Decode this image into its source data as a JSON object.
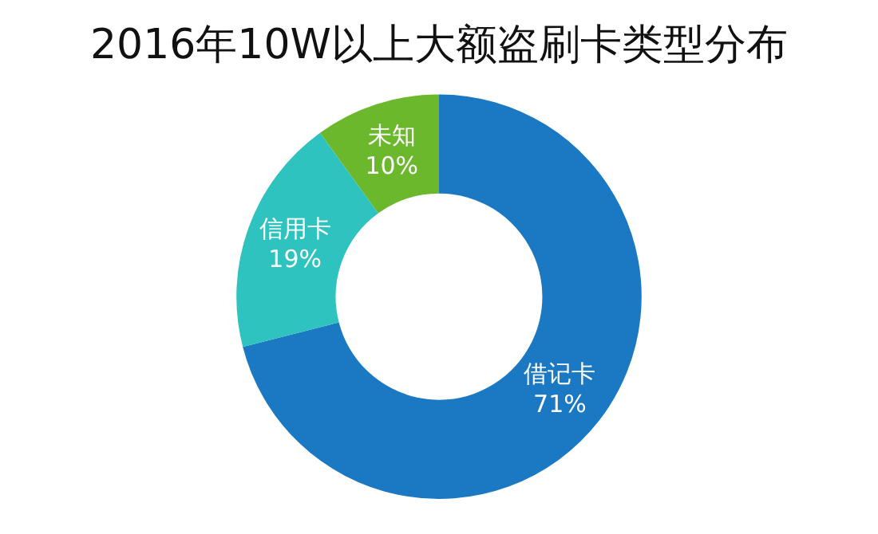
{
  "chart_data": {
    "type": "donut",
    "title": "2016年10W以上大额盗刷卡类型分布",
    "categories": [
      "借记卡",
      "信用卡",
      "未知"
    ],
    "values": [
      71,
      19,
      10
    ],
    "value_labels": [
      "71%",
      "19%",
      "10%"
    ],
    "colors": [
      "#1b78c3",
      "#2ec3bf",
      "#6bb82d"
    ],
    "legend": false
  }
}
